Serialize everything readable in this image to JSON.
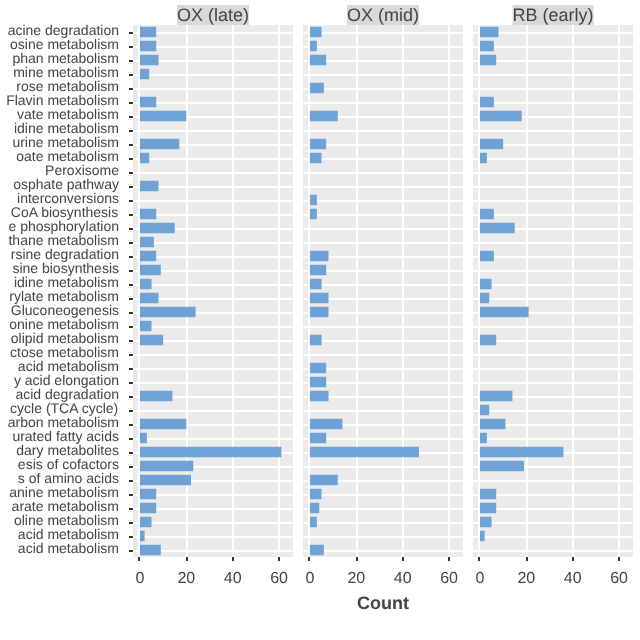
{
  "chart_data": [
    {
      "type": "bar",
      "orientation": "horizontal",
      "title": "OX (late)",
      "color": "#6fa3d6",
      "xlim": [
        -3,
        66
      ],
      "xticks": [
        0,
        20,
        40,
        60
      ],
      "grid": true,
      "categories": [
        "acine degradation",
        "osine metabolism",
        "phan metabolism",
        "mine metabolism",
        "rose metabolism",
        "Flavin metabolism",
        "vate metabolism",
        "idine metabolism",
        "urine metabolism",
        "oate metabolism",
        "Peroxisome",
        "osphate pathway",
        "interconversions",
        "CoA biosynthesis",
        "e phosphorylation",
        "thane metabolism",
        "rsine degradation",
        "sine biosynthesis",
        "idine metabolism",
        "rylate metabolism",
        "Gluconeogenesis",
        "onine metabolism",
        "olipid metabolism",
        "ctose metabolism",
        "acid metabolism",
        "y acid elongation",
        "acid degradation",
        "cycle (TCA cycle)",
        "arbon metabolism",
        "urated fatty acids",
        "dary metabolites",
        "esis of cofactors",
        "s of amino acids",
        "anine metabolism",
        "arate metabolism",
        "oline metabolism",
        "acid metabolism",
        "acid metabolism"
      ],
      "values": [
        7,
        7,
        8,
        4,
        null,
        7,
        20,
        null,
        17,
        4,
        null,
        8,
        null,
        7,
        15,
        6,
        7,
        9,
        5,
        8,
        24,
        5,
        10,
        null,
        null,
        null,
        14,
        null,
        20,
        3,
        61,
        23,
        22,
        7,
        7,
        5,
        2,
        9
      ]
    },
    {
      "type": "bar",
      "orientation": "horizontal",
      "title": "OX (mid)",
      "color": "#6fa3d6",
      "xlim": [
        -3,
        66
      ],
      "xticks": [
        0,
        20,
        40,
        60
      ],
      "grid": true,
      "tick_labels": "x",
      "xlabel": "Count",
      "values": [
        5,
        3,
        7,
        null,
        6,
        null,
        12,
        null,
        7,
        5,
        null,
        null,
        3,
        3,
        null,
        null,
        8,
        7,
        5,
        8,
        8,
        null,
        5,
        null,
        7,
        7,
        8,
        null,
        14,
        7,
        47,
        null,
        12,
        5,
        4,
        3,
        null,
        6
      ]
    },
    {
      "type": "bar",
      "orientation": "horizontal",
      "title": "RB (early)",
      "color": "#6fa3d6",
      "xlim": [
        -3,
        66
      ],
      "xticks": [
        0,
        20,
        40,
        60
      ],
      "grid": true,
      "tick_labels": "x",
      "values": [
        8,
        6,
        7,
        null,
        null,
        6,
        18,
        null,
        10,
        3,
        null,
        null,
        null,
        6,
        15,
        null,
        6,
        null,
        5,
        4,
        21,
        null,
        7,
        null,
        null,
        null,
        14,
        4,
        11,
        3,
        36,
        19,
        null,
        7,
        7,
        5,
        2,
        null
      ]
    }
  ]
}
